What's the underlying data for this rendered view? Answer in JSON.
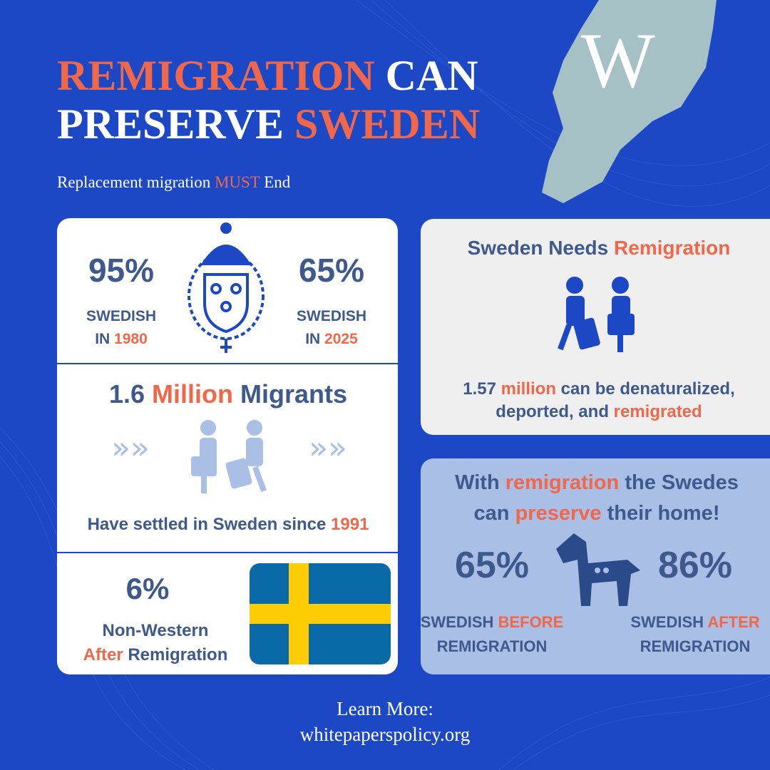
{
  "header": {
    "title_line1": [
      "REMIGRATION",
      "CAN"
    ],
    "title_line2": [
      "PRESERVE",
      "SWEDEN"
    ],
    "subtitle": [
      "Replacement migration",
      "MUST",
      "End"
    ],
    "logo": "W"
  },
  "left_card": {
    "before": {
      "value": "95%",
      "label": [
        "SWEDISH",
        "IN",
        "1980"
      ]
    },
    "now": {
      "value": "65%",
      "label": [
        "SWEDISH",
        "IN",
        "2025"
      ]
    },
    "migrants": {
      "heading": [
        "1.6",
        "Million",
        "Migrants"
      ],
      "caption": [
        "Have settled in Sweden since",
        "1991"
      ]
    },
    "non_western": {
      "value": "6%",
      "label": [
        "Non-Western",
        "After",
        "Remigration"
      ]
    }
  },
  "right_top": {
    "heading": [
      "Sweden Needs",
      "Remigration"
    ],
    "text": [
      "1.57",
      "million",
      "can be denaturalized,",
      "deported, and",
      "remigrated"
    ]
  },
  "right_bottom": {
    "heading": [
      "With",
      "remigration",
      "the Swedes",
      "can",
      "preserve",
      "their home!"
    ],
    "before": {
      "value": "65%",
      "label": [
        "SWEDISH",
        "BEFORE",
        "REMIGRATION"
      ]
    },
    "after": {
      "value": "86%",
      "label": [
        "SWEDISH",
        "AFTER",
        "REMIGRATION"
      ]
    }
  },
  "footer": [
    "Learn More:",
    "whitepaperspolicy.org"
  ]
}
